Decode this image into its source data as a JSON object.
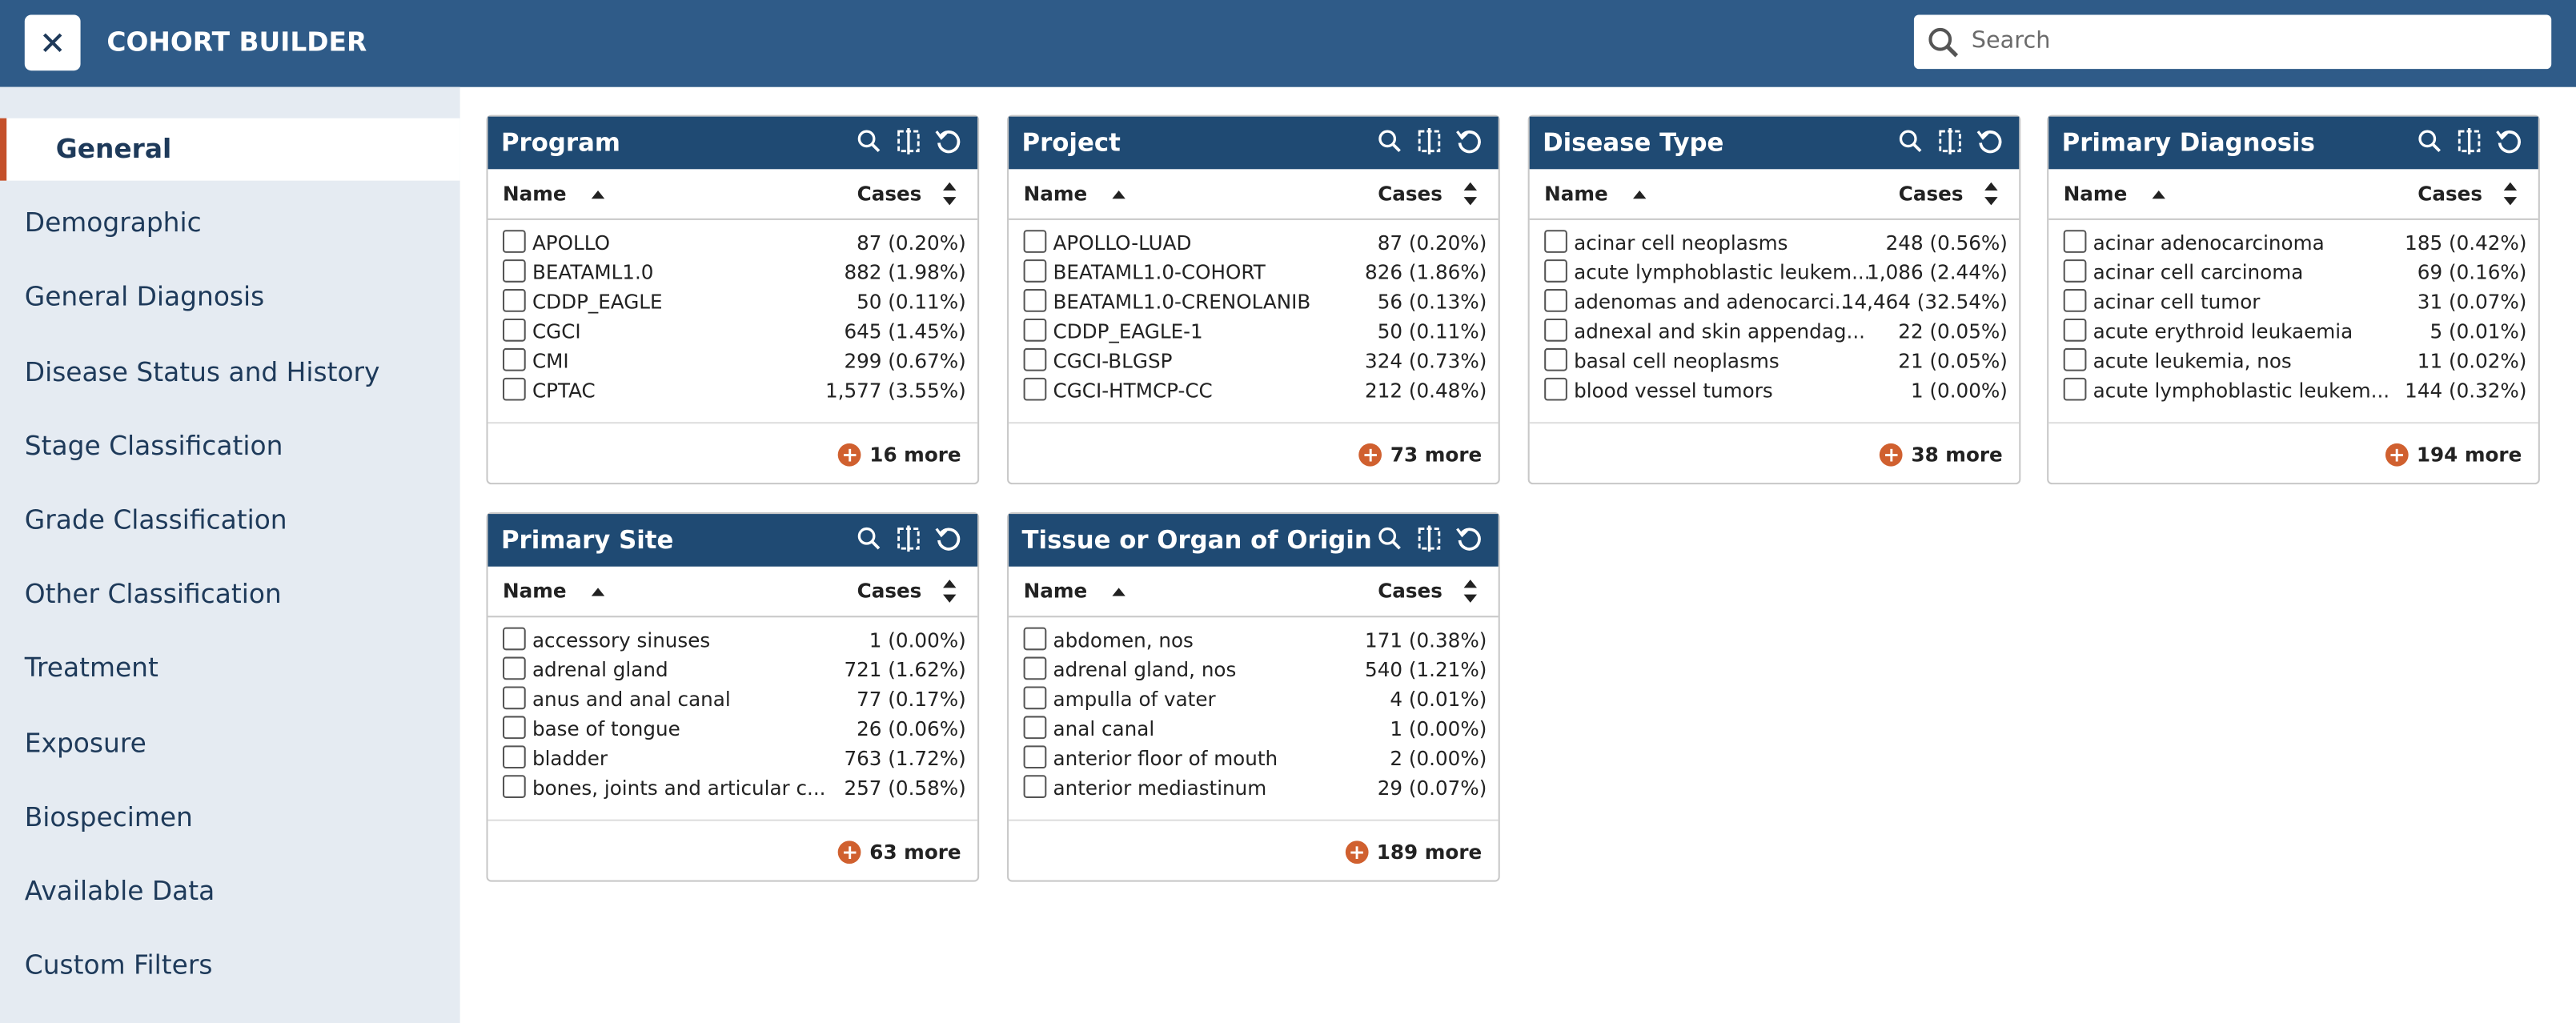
{
  "header": {
    "title": "COHORT BUILDER",
    "search_placeholder": "Search"
  },
  "nav": [
    "General",
    "Demographic",
    "General Diagnosis",
    "Disease Status and History",
    "Stage Classification",
    "Grade Classification",
    "Other Classification",
    "Treatment",
    "Exposure",
    "Biospecimen",
    "Available Data",
    "Custom Filters"
  ],
  "columns": {
    "name": "Name",
    "cases": "Cases"
  },
  "cards": [
    {
      "title": "Program",
      "rows": [
        [
          "APOLLO",
          "87 (0.20%)"
        ],
        [
          "BEATAML1.0",
          "882 (1.98%)"
        ],
        [
          "CDDP_EAGLE",
          "50 (0.11%)"
        ],
        [
          "CGCI",
          "645 (1.45%)"
        ],
        [
          "CMI",
          "299 (0.67%)"
        ],
        [
          "CPTAC",
          "1,577 (3.55%)"
        ]
      ],
      "more": "16 more"
    },
    {
      "title": "Project",
      "rows": [
        [
          "APOLLO-LUAD",
          "87 (0.20%)"
        ],
        [
          "BEATAML1.0-COHORT",
          "826 (1.86%)"
        ],
        [
          "BEATAML1.0-CRENOLANIB",
          "56 (0.13%)"
        ],
        [
          "CDDP_EAGLE-1",
          "50 (0.11%)"
        ],
        [
          "CGCI-BLGSP",
          "324 (0.73%)"
        ],
        [
          "CGCI-HTMCP-CC",
          "212 (0.48%)"
        ]
      ],
      "more": "73 more"
    },
    {
      "title": "Disease Type",
      "rows": [
        [
          "acinar cell neoplasms",
          "248 (0.56%)"
        ],
        [
          "acute lymphoblastic leukem...",
          "1,086 (2.44%)"
        ],
        [
          "adenomas and adenocarci...",
          "14,464 (32.54%)"
        ],
        [
          "adnexal and skin appendag...",
          "22 (0.05%)"
        ],
        [
          "basal cell neoplasms",
          "21 (0.05%)"
        ],
        [
          "blood vessel tumors",
          "1 (0.00%)"
        ]
      ],
      "more": "38 more"
    },
    {
      "title": "Primary Diagnosis",
      "rows": [
        [
          "acinar adenocarcinoma",
          "185 (0.42%)"
        ],
        [
          "acinar cell carcinoma",
          "69 (0.16%)"
        ],
        [
          "acinar cell tumor",
          "31 (0.07%)"
        ],
        [
          "acute erythroid leukaemia",
          "5 (0.01%)"
        ],
        [
          "acute leukemia, nos",
          "11 (0.02%)"
        ],
        [
          "acute lymphoblastic leukem...",
          "144 (0.32%)"
        ]
      ],
      "more": "194 more"
    },
    {
      "title": "Primary Site",
      "rows": [
        [
          "accessory sinuses",
          "1 (0.00%)"
        ],
        [
          "adrenal gland",
          "721 (1.62%)"
        ],
        [
          "anus and anal canal",
          "77 (0.17%)"
        ],
        [
          "base of tongue",
          "26 (0.06%)"
        ],
        [
          "bladder",
          "763 (1.72%)"
        ],
        [
          "bones, joints and articular c...",
          "257 (0.58%)"
        ]
      ],
      "more": "63 more"
    },
    {
      "title": "Tissue or Organ of Origin",
      "rows": [
        [
          "abdomen, nos",
          "171 (0.38%)"
        ],
        [
          "adrenal gland, nos",
          "540 (1.21%)"
        ],
        [
          "ampulla of vater",
          "4 (0.01%)"
        ],
        [
          "anal canal",
          "1 (0.00%)"
        ],
        [
          "anterior floor of mouth",
          "2 (0.00%)"
        ],
        [
          "anterior mediastinum",
          "29 (0.07%)"
        ]
      ],
      "more": "189 more"
    }
  ]
}
